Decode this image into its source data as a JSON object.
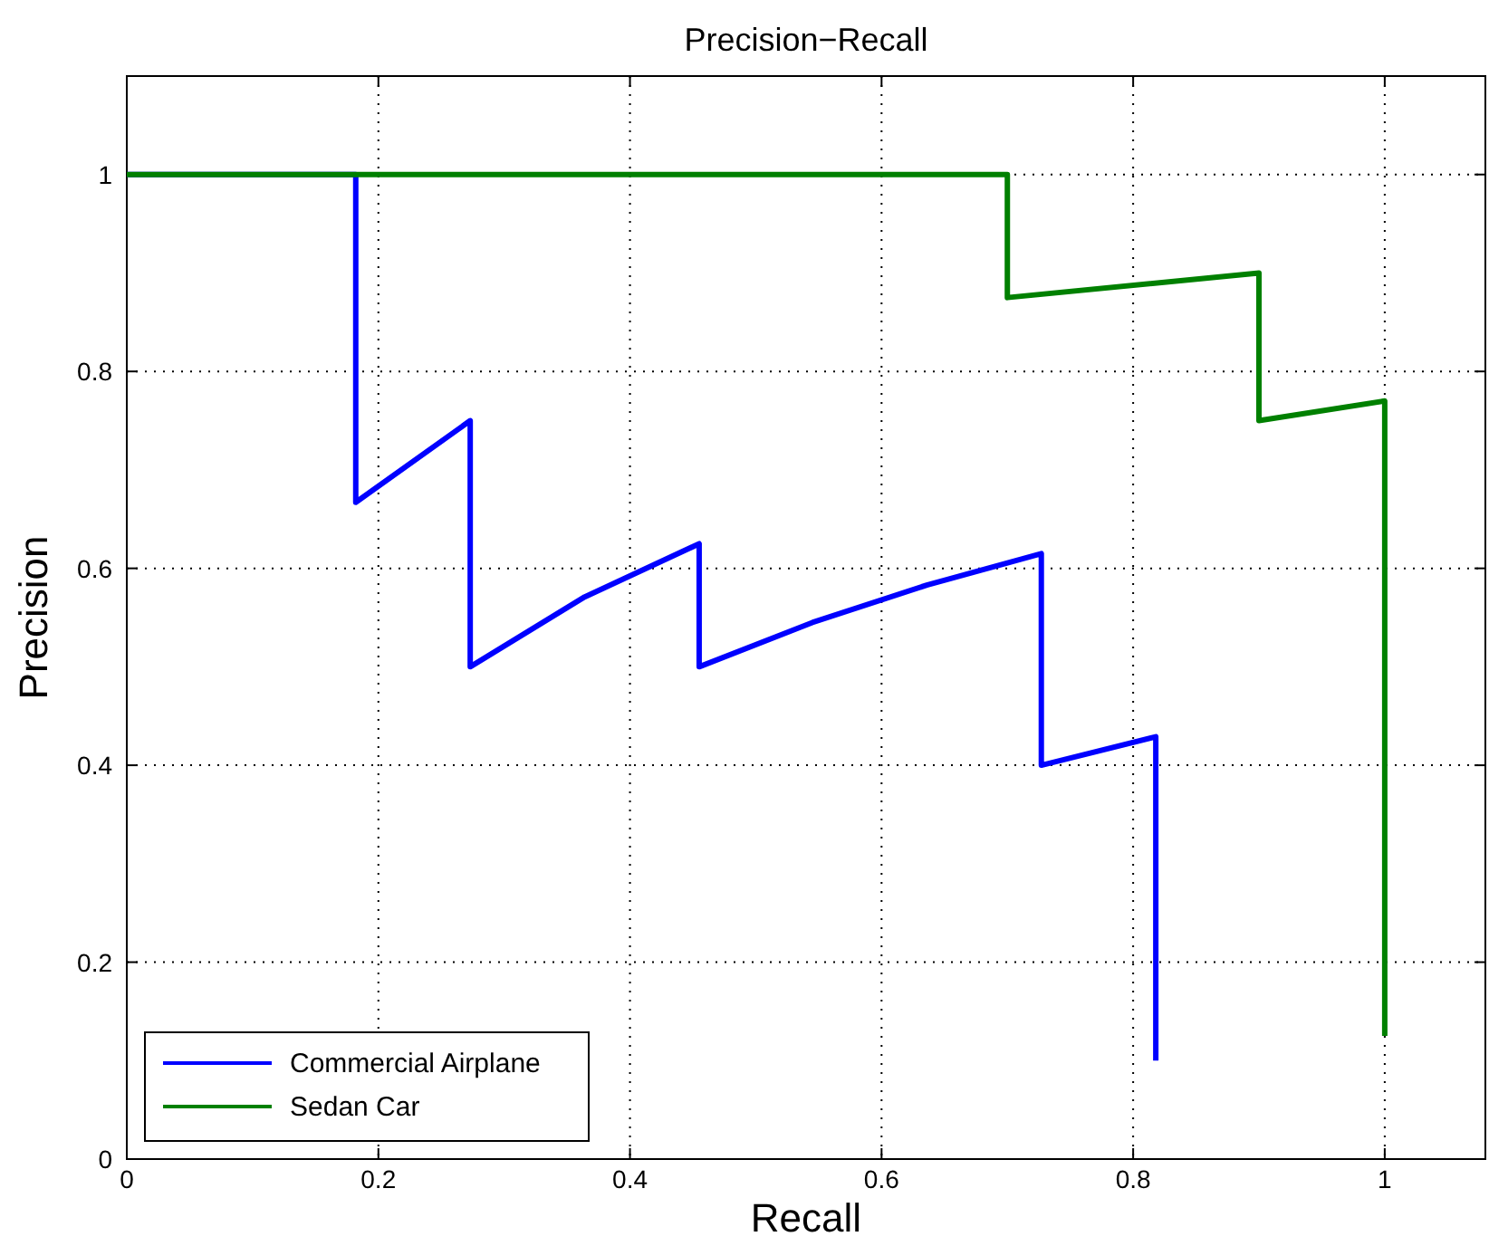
{
  "chart_data": {
    "type": "line",
    "title": "Precision−Recall",
    "xlabel": "Recall",
    "ylabel": "Precision",
    "xlim": [
      0,
      1.08
    ],
    "ylim": [
      0,
      1.1
    ],
    "xticks": [
      0,
      0.2,
      0.4,
      0.6,
      0.8,
      1
    ],
    "yticks": [
      0,
      0.2,
      0.4,
      0.6,
      0.8,
      1
    ],
    "grid": true,
    "legend": "bottom left",
    "line_style": "solid",
    "marker": "none",
    "series": [
      {
        "name": "Commercial Airplane",
        "color": "#0000ff",
        "x": [
          0,
          0.182,
          0.182,
          0.273,
          0.273,
          0.364,
          0.455,
          0.455,
          0.545,
          0.636,
          0.727,
          0.727,
          0.818,
          0.818
        ],
        "values": [
          1,
          1,
          0.667,
          0.75,
          0.5,
          0.571,
          0.625,
          0.5,
          0.545,
          0.583,
          0.615,
          0.4,
          0.429,
          0.1
        ]
      },
      {
        "name": "Sedan Car",
        "color": "#008000",
        "x": [
          0,
          0.7,
          0.7,
          0.9,
          0.9,
          1,
          1
        ],
        "values": [
          1,
          1,
          0.875,
          0.9,
          0.75,
          0.77,
          0.125
        ]
      }
    ]
  }
}
